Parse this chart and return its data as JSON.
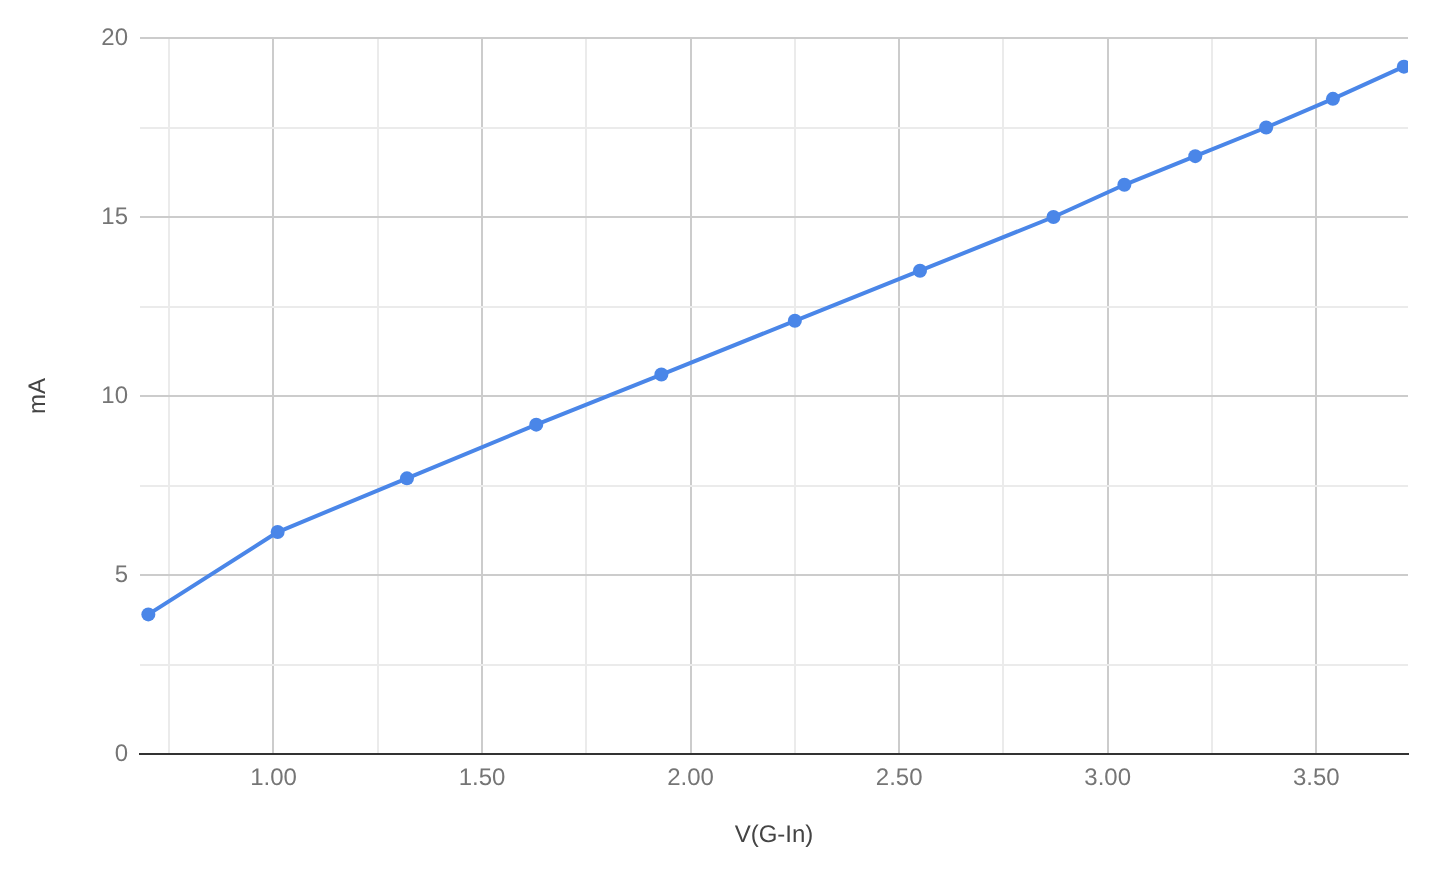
{
  "chart_data": {
    "type": "line",
    "xlabel": "V(G-In)",
    "ylabel": "mA",
    "x": [
      0.7,
      1.01,
      1.32,
      1.63,
      1.93,
      2.25,
      2.55,
      2.87,
      3.04,
      3.21,
      3.38,
      3.54,
      3.71
    ],
    "values": [
      3.9,
      6.2,
      7.7,
      9.2,
      10.6,
      12.1,
      13.5,
      15.0,
      15.9,
      16.7,
      17.5,
      18.3,
      19.2
    ],
    "color": "#4a86e8",
    "marker": "circle",
    "line_style": "solid",
    "xlim": [
      0.68,
      3.72
    ],
    "xticks": [
      {
        "value": 0.75,
        "label": null
      },
      {
        "value": 1,
        "label": "1.00"
      },
      {
        "value": 1.25,
        "label": null
      },
      {
        "value": 1.5,
        "label": "1.50"
      },
      {
        "value": 1.75,
        "label": null
      },
      {
        "value": 2,
        "label": "2.00"
      },
      {
        "value": 2.25,
        "label": null
      },
      {
        "value": 2.5,
        "label": "2.50"
      },
      {
        "value": 2.75,
        "label": null
      },
      {
        "value": 3,
        "label": "3.00"
      },
      {
        "value": 3.25,
        "label": null
      },
      {
        "value": 3.5,
        "label": "3.50"
      }
    ],
    "ylim": [
      0,
      20
    ],
    "yticks": [
      0,
      {
        "value": 2.5,
        "label": null
      },
      5,
      {
        "value": 7.5,
        "label": null
      },
      10,
      {
        "value": 12.5,
        "label": null
      },
      15,
      {
        "value": 17.5,
        "label": null
      },
      20
    ],
    "grid": true
  }
}
